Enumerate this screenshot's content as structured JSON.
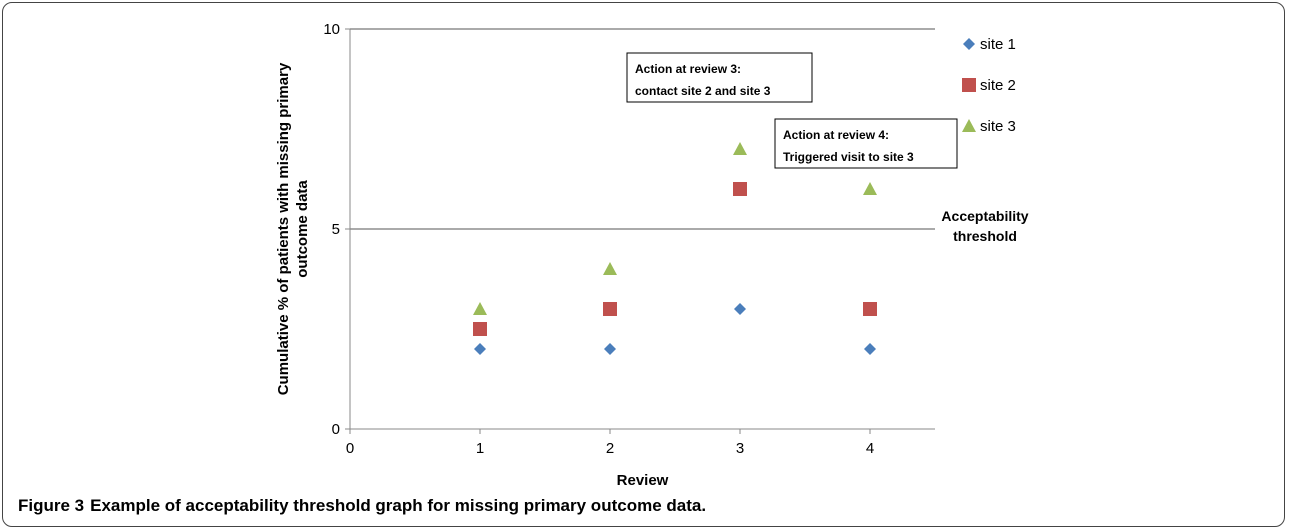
{
  "chart_data": {
    "type": "scatter",
    "xlabel": "Review",
    "ylabel": "Cumulative % of patients with missing primary outcome data",
    "xlim": [
      0,
      4.5
    ],
    "ylim": [
      0,
      10
    ],
    "xticks": [
      0,
      1,
      2,
      3,
      4
    ],
    "yticks": [
      0,
      5,
      10
    ],
    "legend_position": "right",
    "series": [
      {
        "name": "site 1",
        "marker": "diamond",
        "color": "#4a7ebb",
        "x": [
          1,
          2,
          3,
          4
        ],
        "y": [
          2,
          2,
          3,
          2
        ]
      },
      {
        "name": "site 2",
        "marker": "square",
        "color": "#c0504d",
        "x": [
          1,
          2,
          3,
          4
        ],
        "y": [
          2.5,
          3,
          6,
          3
        ]
      },
      {
        "name": "site 3",
        "marker": "triangle",
        "color": "#9bbb59",
        "x": [
          1,
          2,
          3,
          4
        ],
        "y": [
          3,
          4,
          7,
          6
        ]
      }
    ],
    "threshold": {
      "value": 5,
      "label_line1": "Acceptability",
      "label_line2": "threshold"
    },
    "annotations": [
      {
        "line1": "Action at review 3:",
        "line2": "contact site 2 and site 3"
      },
      {
        "line1": "Action at review 4:",
        "line2": "Triggered visit to site 3"
      }
    ]
  },
  "caption": {
    "label": "Figure 3",
    "text": "Example of acceptability threshold graph for missing primary outcome data."
  }
}
